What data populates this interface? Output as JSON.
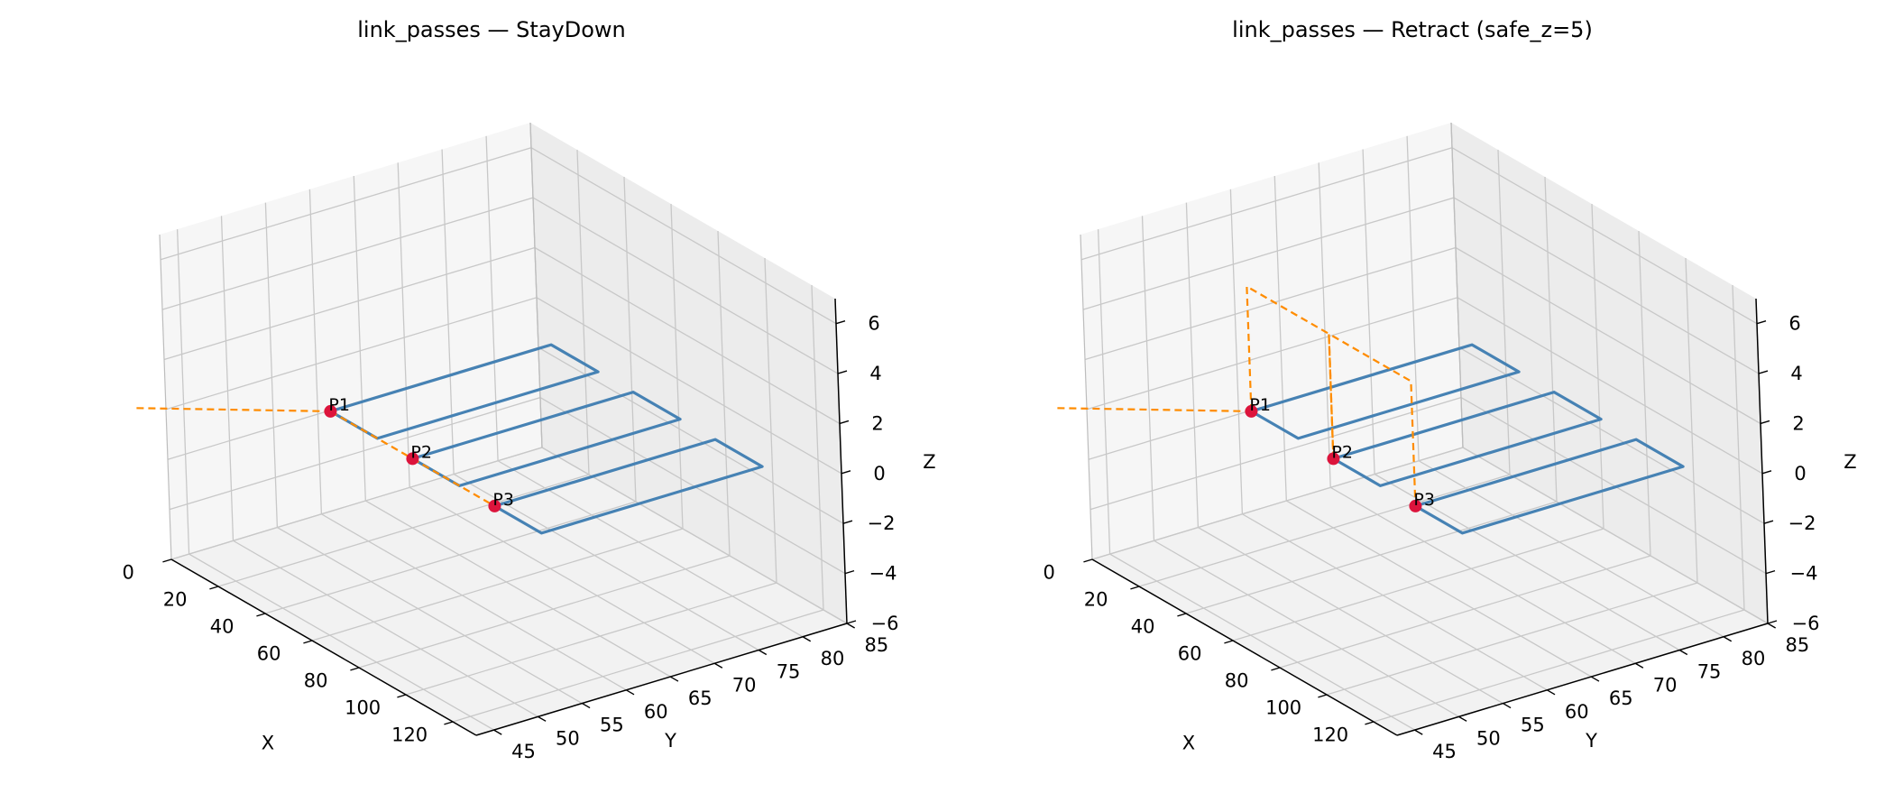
{
  "figure": {
    "colors": {
      "pass": "#4682b4",
      "link": "#ff8c00",
      "point": "#dc143c",
      "pane": "#f2f2f2",
      "grid": "#c8c8c8"
    }
  },
  "chart_data": [
    {
      "type": "line3d",
      "title": "link_passes — StayDown",
      "xlabel": "X",
      "ylabel": "Y",
      "zlabel": "Z",
      "xlim": [
        0,
        130
      ],
      "ylim": [
        43,
        85
      ],
      "zlim": [
        -6,
        7
      ],
      "xticks": [
        0,
        20,
        40,
        60,
        80,
        100,
        120
      ],
      "xticklabels": [
        "0",
        "20",
        "40",
        "60",
        "80",
        "100",
        "120"
      ],
      "yticks": [
        45,
        50,
        55,
        60,
        65,
        70,
        75,
        80,
        85
      ],
      "yticklabels": [
        "45",
        "50",
        "55",
        "60",
        "65",
        "70",
        "75",
        "80",
        "85"
      ],
      "zticks": [
        -6,
        -4,
        -2,
        0,
        2,
        4,
        6
      ],
      "zticklabels": [
        "−6",
        "−4",
        "−2",
        "0",
        "2",
        "4",
        "6"
      ],
      "grid": true,
      "passes": [
        [
          [
            25,
            55,
            0
          ],
          [
            25,
            80,
            0
          ],
          [
            45,
            80,
            0
          ],
          [
            45,
            55,
            0
          ],
          [
            25,
            55,
            0
          ]
        ],
        [
          [
            60,
            55,
            0
          ],
          [
            60,
            80,
            0
          ],
          [
            80,
            80,
            0
          ],
          [
            80,
            55,
            0
          ],
          [
            60,
            55,
            0
          ]
        ],
        [
          [
            95,
            55,
            0
          ],
          [
            95,
            80,
            0
          ],
          [
            115,
            80,
            0
          ],
          [
            115,
            55,
            0
          ],
          [
            95,
            55,
            0
          ]
        ]
      ],
      "links": [
        [
          [
            -5,
            41,
            0
          ],
          [
            25,
            55,
            0
          ]
        ],
        [
          [
            25,
            55,
            0
          ],
          [
            60,
            55,
            0
          ]
        ],
        [
          [
            60,
            55,
            0
          ],
          [
            95,
            55,
            0
          ]
        ]
      ],
      "points": [
        {
          "label": "P1",
          "xyz": [
            25,
            55,
            0
          ]
        },
        {
          "label": "P2",
          "xyz": [
            60,
            55,
            0
          ]
        },
        {
          "label": "P3",
          "xyz": [
            95,
            55,
            0
          ]
        }
      ]
    },
    {
      "type": "line3d",
      "title": "link_passes — Retract (safe_z=5)",
      "xlabel": "X",
      "ylabel": "Y",
      "zlabel": "Z",
      "xlim": [
        0,
        130
      ],
      "ylim": [
        43,
        85
      ],
      "zlim": [
        -6,
        7
      ],
      "xticks": [
        0,
        20,
        40,
        60,
        80,
        100,
        120
      ],
      "xticklabels": [
        "0",
        "20",
        "40",
        "60",
        "80",
        "100",
        "120"
      ],
      "yticks": [
        45,
        50,
        55,
        60,
        65,
        70,
        75,
        80,
        85
      ],
      "yticklabels": [
        "45",
        "50",
        "55",
        "60",
        "65",
        "70",
        "75",
        "80",
        "85"
      ],
      "zticks": [
        -6,
        -4,
        -2,
        0,
        2,
        4,
        6
      ],
      "zticklabels": [
        "−6",
        "−4",
        "−2",
        "0",
        "2",
        "4",
        "6"
      ],
      "grid": true,
      "passes": [
        [
          [
            25,
            55,
            0
          ],
          [
            25,
            80,
            0
          ],
          [
            45,
            80,
            0
          ],
          [
            45,
            55,
            0
          ],
          [
            25,
            55,
            0
          ]
        ],
        [
          [
            60,
            55,
            0
          ],
          [
            60,
            80,
            0
          ],
          [
            80,
            80,
            0
          ],
          [
            80,
            55,
            0
          ],
          [
            60,
            55,
            0
          ]
        ],
        [
          [
            95,
            55,
            0
          ],
          [
            95,
            80,
            0
          ],
          [
            115,
            80,
            0
          ],
          [
            115,
            55,
            0
          ],
          [
            95,
            55,
            0
          ]
        ]
      ],
      "links": [
        [
          [
            -5,
            41,
            0
          ],
          [
            25,
            55,
            0
          ]
        ],
        [
          [
            25,
            55,
            0
          ],
          [
            25,
            55,
            5
          ],
          [
            60,
            55,
            5
          ],
          [
            60,
            55,
            0
          ]
        ],
        [
          [
            60,
            55,
            0
          ],
          [
            60,
            55,
            5
          ],
          [
            95,
            55,
            5
          ],
          [
            95,
            55,
            0
          ]
        ]
      ],
      "points": [
        {
          "label": "P1",
          "xyz": [
            25,
            55,
            0
          ]
        },
        {
          "label": "P2",
          "xyz": [
            60,
            55,
            0
          ]
        },
        {
          "label": "P3",
          "xyz": [
            95,
            55,
            0
          ]
        }
      ]
    }
  ]
}
